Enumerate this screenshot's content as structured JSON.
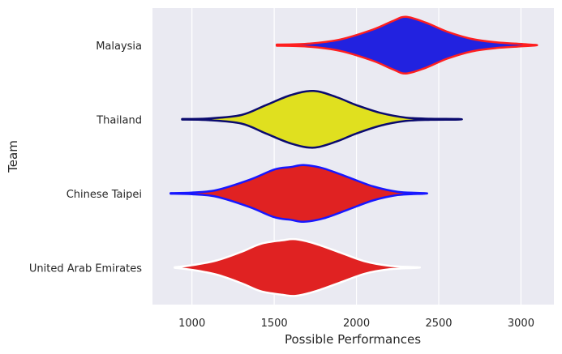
{
  "chart_data": {
    "type": "violin",
    "orientation": "horizontal",
    "xlabel": "Possible Performances",
    "ylabel": "Team",
    "xlim": [
      760,
      3200
    ],
    "xticks": [
      1000,
      1500,
      2000,
      2500,
      3000
    ],
    "grid": true,
    "legend": "none",
    "background_color": "#eaeaf2",
    "grid_color": "#ffffff",
    "series": [
      {
        "category": "Malaysia",
        "fill": "#2222e0",
        "edge": "#ff1f1f",
        "profile": [
          [
            1515,
            0.02
          ],
          [
            1700,
            0.05
          ],
          [
            1900,
            0.2
          ],
          [
            2100,
            0.55
          ],
          [
            2220,
            0.85
          ],
          [
            2300,
            1.0
          ],
          [
            2420,
            0.8
          ],
          [
            2550,
            0.48
          ],
          [
            2700,
            0.22
          ],
          [
            2850,
            0.1
          ],
          [
            2980,
            0.05
          ],
          [
            3085,
            0.01
          ]
        ]
      },
      {
        "category": "Thailand",
        "fill": "#e0e01f",
        "edge": "#0a0a6e",
        "profile": [
          [
            940,
            0.01
          ],
          [
            1100,
            0.03
          ],
          [
            1300,
            0.15
          ],
          [
            1450,
            0.5
          ],
          [
            1600,
            0.85
          ],
          [
            1740,
            1.0
          ],
          [
            1880,
            0.78
          ],
          [
            2000,
            0.5
          ],
          [
            2150,
            0.22
          ],
          [
            2300,
            0.06
          ],
          [
            2450,
            0.02
          ],
          [
            2620,
            0.01
          ]
        ]
      },
      {
        "category": "Chinese Taipei",
        "fill": "#e02222",
        "edge": "#1717ff",
        "profile": [
          [
            870,
            0.01
          ],
          [
            1000,
            0.03
          ],
          [
            1150,
            0.12
          ],
          [
            1350,
            0.48
          ],
          [
            1500,
            0.84
          ],
          [
            1600,
            0.93
          ],
          [
            1680,
            1.0
          ],
          [
            1800,
            0.88
          ],
          [
            1950,
            0.57
          ],
          [
            2100,
            0.25
          ],
          [
            2250,
            0.06
          ],
          [
            2410,
            0.01
          ]
        ]
      },
      {
        "category": "United Arab Emirates",
        "fill": "#e02222",
        "edge": "#ffffff",
        "profile": [
          [
            895,
            0.01
          ],
          [
            1000,
            0.08
          ],
          [
            1150,
            0.25
          ],
          [
            1300,
            0.55
          ],
          [
            1420,
            0.84
          ],
          [
            1550,
            0.96
          ],
          [
            1630,
            1.0
          ],
          [
            1750,
            0.84
          ],
          [
            1900,
            0.53
          ],
          [
            2050,
            0.22
          ],
          [
            2200,
            0.06
          ],
          [
            2365,
            0.01
          ]
        ]
      }
    ]
  }
}
